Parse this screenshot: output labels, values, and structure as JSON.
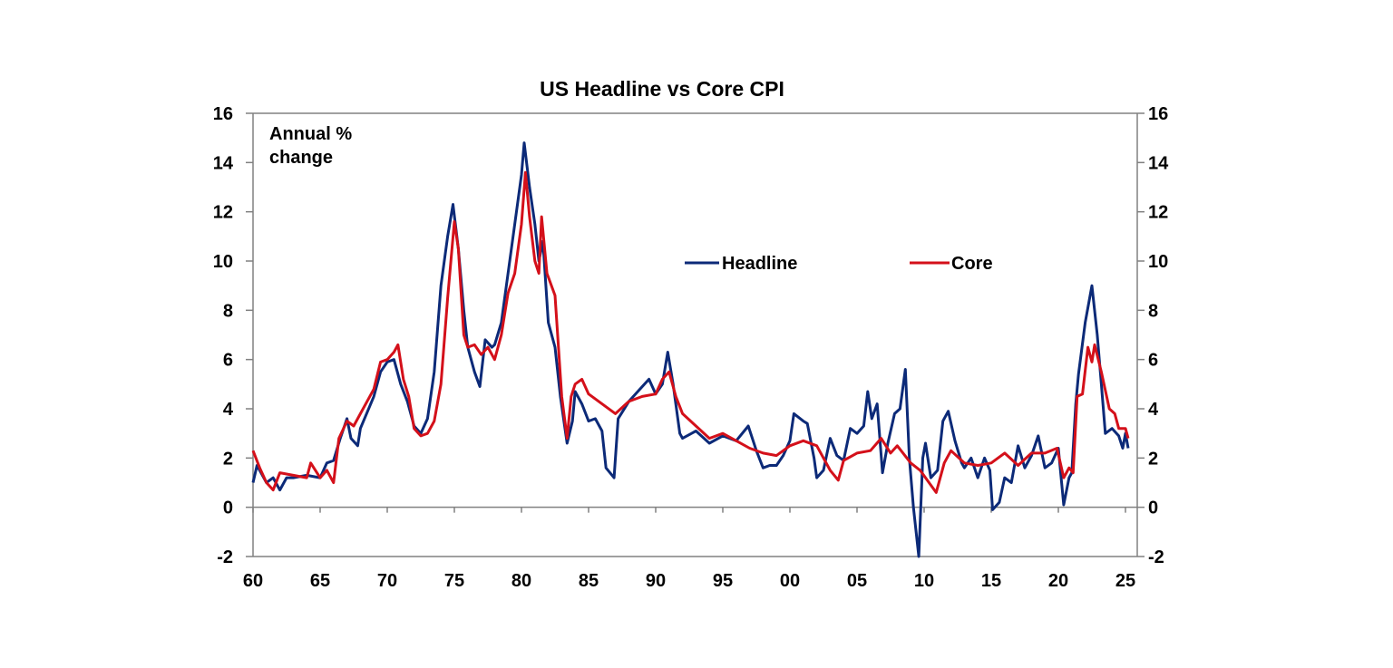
{
  "chart_data": {
    "type": "line",
    "title": "US Headline vs Core CPI",
    "annotation": "Annual % change",
    "annotation_lines": [
      "Annual %",
      "change"
    ],
    "xlabel": "",
    "ylabel": "",
    "xlim": [
      1960,
      2025.9
    ],
    "ylim": [
      -2,
      16
    ],
    "y_ticks": [
      -2,
      0,
      2,
      4,
      6,
      8,
      10,
      12,
      14,
      16
    ],
    "y_tick_labels": [
      "-2",
      "0",
      "2",
      "4",
      "6",
      "8",
      "10",
      "12",
      "14",
      "16"
    ],
    "x_ticks": [
      1960,
      1965,
      1970,
      1975,
      1980,
      1985,
      1990,
      1995,
      2000,
      2005,
      2010,
      2015,
      2020,
      2025
    ],
    "x_tick_labels": [
      "60",
      "65",
      "70",
      "75",
      "80",
      "85",
      "90",
      "95",
      "00",
      "05",
      "10",
      "15",
      "20",
      "25"
    ],
    "dual_y_axis": true,
    "grid": false,
    "legend_placement": "upper-right-center",
    "series": [
      {
        "name": "Headline",
        "color": "#0c2a78",
        "x": [
          1960,
          1960.3,
          1961,
          1961.5,
          1962,
          1962.5,
          1963,
          1964,
          1965,
          1965.5,
          1966,
          1966.5,
          1967,
          1967.3,
          1967.8,
          1968,
          1969,
          1969.5,
          1970,
          1970.5,
          1971,
          1971.5,
          1972,
          1972.5,
          1973,
          1973.5,
          1974,
          1974.5,
          1974.9,
          1975.3,
          1975.7,
          1976,
          1976.5,
          1976.9,
          1977.3,
          1977.8,
          1978,
          1978.5,
          1979,
          1979.5,
          1980,
          1980.2,
          1980.6,
          1981,
          1981.3,
          1981.6,
          1982,
          1982.5,
          1982.9,
          1983.4,
          1983.8,
          1984,
          1984.5,
          1985,
          1985.5,
          1986,
          1986.3,
          1986.9,
          1987.2,
          1988,
          1989,
          1989.5,
          1990,
          1990.5,
          1990.9,
          1991.3,
          1991.8,
          1992,
          1993,
          1994,
          1995,
          1996,
          1996.9,
          1997.5,
          1998,
          1998.5,
          1999,
          1999.5,
          2000,
          2000.3,
          2001,
          2001.3,
          2001.8,
          2002,
          2002.5,
          2003,
          2003.5,
          2004,
          2004.5,
          2005,
          2005.5,
          2005.8,
          2006.1,
          2006.5,
          2006.9,
          2007.3,
          2007.8,
          2008.2,
          2008.6,
          2008.9,
          2009.2,
          2009.6,
          2009.9,
          2010.1,
          2010.5,
          2011,
          2011.4,
          2011.8,
          2012.3,
          2012.8,
          2013,
          2013.5,
          2014,
          2014.5,
          2014.9,
          2015.1,
          2015.6,
          2016,
          2016.5,
          2017,
          2017.5,
          2018,
          2018.5,
          2019,
          2019.5,
          2020,
          2020.4,
          2020.8,
          2021,
          2021.3,
          2021.5,
          2022,
          2022.5,
          2022.9,
          2023.2,
          2023.5,
          2024,
          2024.5,
          2024.8,
          2025,
          2025.2
        ],
        "values": [
          1.0,
          1.7,
          1.0,
          1.2,
          0.7,
          1.2,
          1.2,
          1.3,
          1.2,
          1.8,
          1.9,
          2.8,
          3.6,
          2.8,
          2.5,
          3.2,
          4.5,
          5.5,
          5.9,
          6.0,
          5.0,
          4.3,
          3.3,
          3.0,
          3.6,
          5.5,
          9.0,
          11.0,
          12.3,
          10.5,
          8.0,
          6.5,
          5.5,
          4.9,
          6.8,
          6.5,
          6.6,
          7.5,
          9.5,
          11.5,
          13.5,
          14.8,
          13.0,
          11.5,
          10.0,
          10.8,
          7.5,
          6.5,
          4.5,
          2.6,
          3.5,
          4.7,
          4.2,
          3.5,
          3.6,
          3.1,
          1.6,
          1.2,
          3.6,
          4.3,
          4.9,
          5.2,
          4.6,
          5.0,
          6.3,
          5.0,
          3.0,
          2.8,
          3.1,
          2.6,
          2.9,
          2.7,
          3.3,
          2.3,
          1.6,
          1.7,
          1.7,
          2.1,
          2.7,
          3.8,
          3.5,
          3.4,
          2.0,
          1.2,
          1.5,
          2.8,
          2.1,
          1.9,
          3.2,
          3.0,
          3.3,
          4.7,
          3.6,
          4.2,
          1.4,
          2.6,
          3.8,
          4.0,
          5.6,
          2.0,
          0.0,
          -2.0,
          2.0,
          2.6,
          1.2,
          1.5,
          3.5,
          3.9,
          2.7,
          1.8,
          1.6,
          2.0,
          1.2,
          2.0,
          1.5,
          -0.1,
          0.2,
          1.2,
          1.0,
          2.5,
          1.6,
          2.1,
          2.9,
          1.6,
          1.8,
          2.4,
          0.1,
          1.2,
          1.4,
          4.2,
          5.4,
          7.5,
          9.0,
          7.0,
          5.0,
          3.0,
          3.2,
          2.9,
          2.4,
          3.0,
          2.4
        ]
      },
      {
        "name": "Core",
        "color": "#d4101a",
        "x": [
          1960,
          1960.5,
          1961,
          1961.5,
          1962,
          1963,
          1964,
          1964.3,
          1965,
          1965.5,
          1966,
          1966.4,
          1967,
          1967.5,
          1968,
          1969,
          1969.5,
          1970,
          1970.5,
          1970.8,
          1971.2,
          1971.6,
          1972,
          1972.5,
          1973,
          1973.5,
          1974,
          1974.5,
          1975,
          1975.3,
          1975.7,
          1976,
          1976.5,
          1977,
          1977.5,
          1978,
          1978.5,
          1979,
          1979.5,
          1980,
          1980.3,
          1980.6,
          1981,
          1981.3,
          1981.5,
          1981.9,
          1982.5,
          1983,
          1983.4,
          1983.7,
          1984,
          1984.5,
          1985,
          1986,
          1987,
          1988,
          1989,
          1990,
          1990.5,
          1991,
          1991.5,
          1992,
          1993,
          1994,
          1995,
          1996,
          1997,
          1998,
          1999,
          2000,
          2001,
          2002,
          2003,
          2003.6,
          2004,
          2005,
          2006,
          2006.8,
          2007.5,
          2008,
          2009,
          2009.7,
          2010.5,
          2010.9,
          2011.5,
          2012,
          2013,
          2014,
          2015,
          2016,
          2017,
          2018,
          2019,
          2019.9,
          2020.4,
          2020.8,
          2021.1,
          2021.4,
          2021.8,
          2022.2,
          2022.5,
          2022.7,
          2023.2,
          2023.8,
          2024.2,
          2024.5,
          2025,
          2025.2
        ],
        "values": [
          2.3,
          1.6,
          1.0,
          0.7,
          1.4,
          1.3,
          1.2,
          1.8,
          1.2,
          1.5,
          1.0,
          2.8,
          3.5,
          3.3,
          3.8,
          4.8,
          5.9,
          6.0,
          6.3,
          6.6,
          5.2,
          4.5,
          3.2,
          2.9,
          3.0,
          3.5,
          5.0,
          8.5,
          11.6,
          10.5,
          7.0,
          6.5,
          6.6,
          6.2,
          6.5,
          6.0,
          7.0,
          8.7,
          9.5,
          11.5,
          13.6,
          11.8,
          10.0,
          9.5,
          11.8,
          9.5,
          8.6,
          4.5,
          2.8,
          4.5,
          5.0,
          5.2,
          4.6,
          4.2,
          3.8,
          4.3,
          4.5,
          4.6,
          5.2,
          5.5,
          4.5,
          3.8,
          3.3,
          2.8,
          3.0,
          2.7,
          2.4,
          2.2,
          2.1,
          2.5,
          2.7,
          2.5,
          1.5,
          1.1,
          1.9,
          2.2,
          2.3,
          2.8,
          2.2,
          2.5,
          1.8,
          1.5,
          0.9,
          0.6,
          1.8,
          2.3,
          1.8,
          1.7,
          1.8,
          2.2,
          1.7,
          2.2,
          2.2,
          2.4,
          1.2,
          1.6,
          1.4,
          4.5,
          4.6,
          6.5,
          5.9,
          6.6,
          5.5,
          4.0,
          3.8,
          3.2,
          3.2,
          2.8
        ]
      }
    ]
  }
}
